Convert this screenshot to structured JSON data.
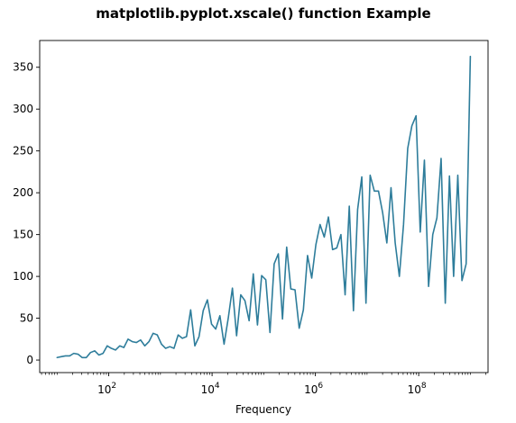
{
  "chart_data": {
    "type": "line",
    "title": "matplotlib.pyplot.xscale() function Example",
    "xlabel": "Frequency",
    "ylabel": "",
    "xscale": "log",
    "xlim": [
      4.6,
      2200000000.0
    ],
    "ylim": [
      -15,
      382
    ],
    "grid": false,
    "legend": "none",
    "line_color": "#2e7d9b",
    "x_ticks": [
      {
        "value": 100,
        "base": "10",
        "exp": "2"
      },
      {
        "value": 10000,
        "base": "10",
        "exp": "4"
      },
      {
        "value": 1000000,
        "base": "10",
        "exp": "6"
      },
      {
        "value": 100000000,
        "base": "10",
        "exp": "8"
      }
    ],
    "y_ticks": [
      0,
      50,
      100,
      150,
      200,
      250,
      300,
      350
    ],
    "x": [
      10,
      12.0,
      14.5,
      17.5,
      21.0,
      25.4,
      30.5,
      36.8,
      44.3,
      53.4,
      64.3,
      77.4,
      93.3,
      112,
      135,
      163,
      196,
      236,
      285,
      343,
      413,
      498,
      600,
      722,
      870,
      1048,
      1262,
      1520,
      1831,
      2205,
      2656,
      3199,
      3853,
      4641,
      5590,
      6732,
      8110,
      9767,
      11764,
      14170,
      17068,
      20558,
      24762,
      29825,
      35924,
      43270,
      52117,
      62774,
      75611,
      91072,
      109694,
      132124,
      159140,
      191680,
      230876,
      278084,
      334946,
      403436,
      485930,
      585293,
      704973,
      849124,
      1022751,
      1231881,
      1483774,
      1787172,
      2152605,
      2592762,
      3122922,
      3761491,
      4530636,
      5457057,
      6572914,
      7916942,
      9535795,
      11485669,
      13834248,
      16663049,
      20070273,
      24174220,
      29117318,
      35071176,
      42242497,
      50880228,
      61284186,
      73815519,
      88909180,
      107089123,
      128986567,
      155361505,
      187129630,
      225393668,
      271481916,
      326994286,
      393857704,
      474393540,
      571397389,
      688236486,
      828966839,
      1000000000
    ],
    "values": [
      3,
      4,
      5,
      5,
      8,
      7,
      3,
      3,
      9,
      11,
      6,
      8,
      17,
      14,
      12,
      17,
      15,
      25,
      22,
      21,
      24,
      17,
      22,
      32,
      30,
      19,
      14,
      16,
      14,
      30,
      26,
      28,
      60,
      17,
      28,
      59,
      72,
      43,
      37,
      53,
      19,
      50,
      86,
      29,
      78,
      71,
      47,
      103,
      42,
      101,
      96,
      33,
      115,
      127,
      49,
      135,
      85,
      84,
      38,
      60,
      125,
      98,
      138,
      162,
      147,
      171,
      132,
      134,
      150,
      78,
      184,
      59,
      180,
      219,
      68,
      221,
      202,
      202,
      176,
      140,
      206,
      140,
      100,
      162,
      253,
      280,
      292,
      153,
      239,
      88,
      150,
      170,
      241,
      68,
      220,
      100,
      221,
      95,
      115,
      363
    ]
  }
}
